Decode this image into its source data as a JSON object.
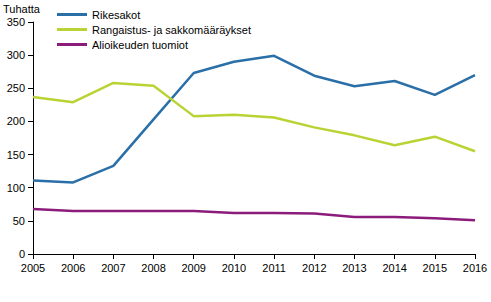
{
  "chart_data": {
    "type": "line",
    "ylabel": "Tuhatta",
    "categories": [
      "2005",
      "2006",
      "2007",
      "2008",
      "2009",
      "2010",
      "2011",
      "2012",
      "2013",
      "2014",
      "2015",
      "2016"
    ],
    "series": [
      {
        "name": "Rikesakot",
        "color": "#2a6fa8",
        "values": [
          111,
          108,
          133,
          203,
          273,
          290,
          299,
          269,
          253,
          261,
          240,
          270
        ]
      },
      {
        "name": "Rangaistus- ja sakkomääräykset",
        "color": "#b9d334",
        "values": [
          237,
          229,
          258,
          254,
          208,
          210,
          206,
          191,
          179,
          164,
          177,
          155
        ]
      },
      {
        "name": "Alioikeuden tuomiot",
        "color": "#8c1c7c",
        "values": [
          68,
          65,
          65,
          65,
          65,
          62,
          62,
          61,
          56,
          56,
          54,
          51
        ]
      }
    ],
    "ylim": [
      0,
      350
    ],
    "yticks": [
      0,
      50,
      100,
      150,
      200,
      250,
      300,
      350
    ],
    "grid": false,
    "legend": "upper left"
  }
}
